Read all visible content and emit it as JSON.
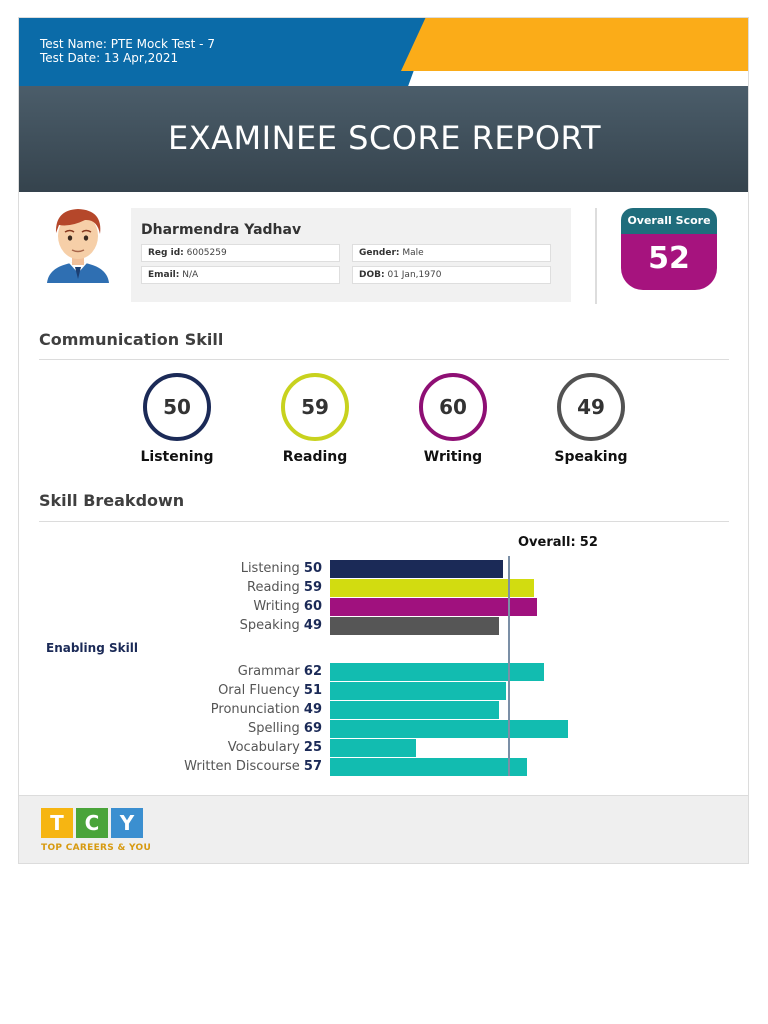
{
  "header": {
    "test_name": "Test Name: PTE Mock Test - 7",
    "test_date": "Test Date: 13 Apr,2021",
    "title": "EXAMINEE SCORE REPORT"
  },
  "examinee": {
    "name": "Dharmendra Yadhav",
    "reg_label": "Reg id:",
    "reg_value": "6005259",
    "gender_label": "Gender:",
    "gender_value": "Male",
    "email_label": "Email:",
    "email_value": "N/A",
    "dob_label": "DOB:",
    "dob_value": "01 Jan,1970"
  },
  "overall_score": {
    "label": "Overall Score",
    "value": "52"
  },
  "communication": {
    "title": "Communication Skill",
    "skills": [
      {
        "label": "Listening",
        "score": "50",
        "color": "#1b2a57"
      },
      {
        "label": "Reading",
        "score": "59",
        "color": "#c8d21e"
      },
      {
        "label": "Writing",
        "score": "60",
        "color": "#8e0f74"
      },
      {
        "label": "Speaking",
        "score": "49",
        "color": "#525252"
      }
    ]
  },
  "breakdown": {
    "title": "Skill Breakdown",
    "overall_label": "Overall:",
    "overall_value": "52",
    "enabling_title": "Enabling Skill",
    "communicative": [
      {
        "label": "Listening",
        "score": "50",
        "color": "#1b2a57"
      },
      {
        "label": "Reading",
        "score": "59",
        "color": "#d2dc10"
      },
      {
        "label": "Writing",
        "score": "60",
        "color": "#a0117e"
      },
      {
        "label": "Speaking",
        "score": "49",
        "color": "#565656"
      }
    ],
    "enabling": [
      {
        "label": "Grammar",
        "score": "62",
        "color": "#12bcb0"
      },
      {
        "label": "Oral Fluency",
        "score": "51",
        "color": "#12bcb0"
      },
      {
        "label": "Pronunciation",
        "score": "49",
        "color": "#12bcb0"
      },
      {
        "label": "Spelling",
        "score": "69",
        "color": "#12bcb0"
      },
      {
        "label": "Vocabulary",
        "score": "25",
        "color": "#12bcb0"
      },
      {
        "label": "Written Discourse",
        "score": "57",
        "color": "#12bcb0"
      }
    ]
  },
  "footer": {
    "logo_letters": [
      "T",
      "C",
      "Y"
    ],
    "logo_colors": [
      "#f6b512",
      "#4aa43a",
      "#3b8fd0"
    ],
    "logo_tagline": "TOP CAREERS & YOU"
  }
}
